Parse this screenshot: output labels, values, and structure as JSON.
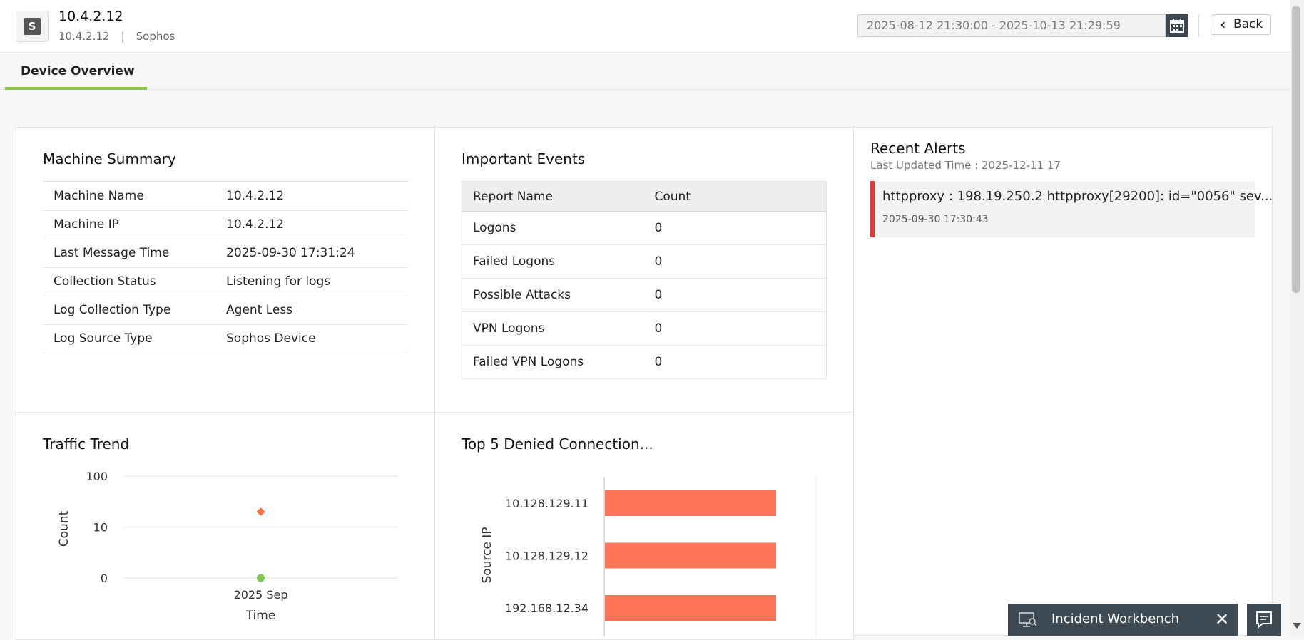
{
  "header": {
    "logo_letter": "S",
    "device_title": "10.4.2.12",
    "device_ip": "10.4.2.12",
    "separator": "|",
    "vendor": "Sophos",
    "date_range": "2025-08-12 21:30:00 - 2025-10-13 21:29:59",
    "back_label": "Back"
  },
  "tabs": [
    {
      "label": "Device Overview",
      "active": true
    }
  ],
  "machine_summary": {
    "title": "Machine Summary",
    "rows": [
      {
        "label": "Machine Name",
        "value": "10.4.2.12"
      },
      {
        "label": "Machine IP",
        "value": "10.4.2.12"
      },
      {
        "label": "Last Message Time",
        "value": "2025-09-30 17:31:24"
      },
      {
        "label": "Collection Status",
        "value": "Listening for logs"
      },
      {
        "label": "Log Collection Type",
        "value": "Agent Less"
      },
      {
        "label": "Log Source Type",
        "value": "Sophos Device"
      }
    ]
  },
  "important_events": {
    "title": "Important Events",
    "columns": [
      "Report Name",
      "Count"
    ],
    "rows": [
      {
        "name": "Logons",
        "count": "0"
      },
      {
        "name": "Failed Logons",
        "count": "0"
      },
      {
        "name": "Possible Attacks",
        "count": "0"
      },
      {
        "name": "VPN Logons",
        "count": "0"
      },
      {
        "name": "Failed VPN Logons",
        "count": "0"
      }
    ]
  },
  "recent_alerts": {
    "title": "Recent Alerts",
    "last_updated": "Last Updated Time : 2025-12-11 17",
    "alerts": [
      {
        "text": "httpproxy : 198.19.250.2 httpproxy[29200]: id=\"0056\" sev...",
        "time": "2025-09-30 17:30:43",
        "severity_color": "#e53935"
      }
    ]
  },
  "traffic_trend": {
    "title": "Traffic Trend",
    "chart_data": {
      "type": "scatter",
      "scale": "log",
      "ylabel": "Count",
      "xlabel": "Time",
      "yticks": [
        "100",
        "10",
        "0"
      ],
      "x": [
        "2025 Sep"
      ],
      "series": [
        {
          "marker": "diamond",
          "color": "#ff7043",
          "values": [
            20
          ]
        },
        {
          "marker": "circle",
          "color": "#7ec855",
          "values": [
            0
          ]
        }
      ]
    }
  },
  "denied_connections": {
    "title": "Top 5 Denied Connection...",
    "chart_data": {
      "type": "bar",
      "orientation": "horizontal",
      "ylabel": "Source IP",
      "categories": [
        "10.128.129.11",
        "10.128.129.12",
        "192.168.12.34"
      ],
      "values": [
        1,
        1,
        1
      ],
      "color": "#ff7557"
    }
  },
  "footer": {
    "workbench_label": "Incident Workbench",
    "close_glyph": "✕"
  }
}
